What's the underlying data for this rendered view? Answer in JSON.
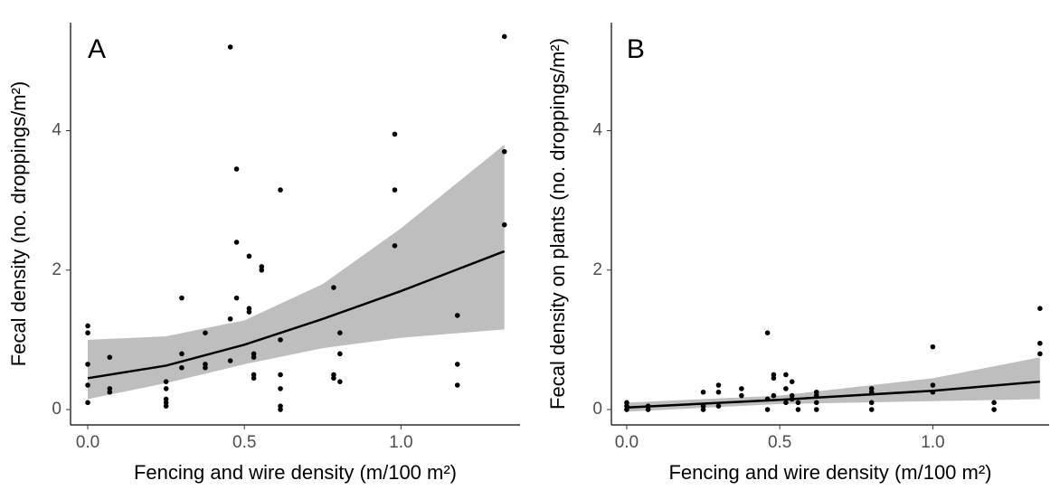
{
  "chart_data": [
    {
      "type": "scatter",
      "annotation": "A",
      "x_label": "Fencing and wire density (m/100 m²)",
      "y_label": "Fecal density (no. droppings/m²)",
      "xlim": [
        -0.055,
        1.38
      ],
      "ylim": [
        -0.22,
        5.55
      ],
      "xticks": [
        {
          "value": 0,
          "label": "0.0"
        },
        {
          "value": 0.5,
          "label": "0.5"
        },
        {
          "value": 1,
          "label": "1.0"
        }
      ],
      "yticks": [
        0,
        2,
        4
      ],
      "points": {
        "color": "#000000",
        "x": [
          0,
          0,
          0,
          0,
          0,
          0.07,
          0.07,
          0.07,
          0.25,
          0.25,
          0.25,
          0.25,
          0.25,
          0.3,
          0.3,
          0.3,
          0.375,
          0.375,
          0.375,
          0.455,
          0.455,
          0.455,
          0.475,
          0.475,
          0.475,
          0.515,
          0.515,
          0.515,
          0.53,
          0.53,
          0.53,
          0.53,
          0.555,
          0.555,
          0.615,
          0.615,
          0.615,
          0.615,
          0.615,
          0.615,
          0.785,
          0.785,
          0.785,
          0.805,
          0.805,
          0.805,
          0.98,
          0.98,
          0.98,
          1.18,
          1.18,
          1.18,
          1.33,
          1.33,
          1.33
        ],
        "y": [
          1.2,
          1.1,
          0.65,
          0.35,
          0.1,
          0.75,
          0.3,
          0.25,
          0.4,
          0.3,
          0.15,
          0.1,
          0.05,
          1.6,
          0.8,
          0.6,
          1.1,
          0.65,
          0.6,
          5.2,
          1.3,
          0.7,
          3.45,
          2.4,
          1.6,
          2.2,
          1.45,
          1.4,
          0.8,
          0.75,
          0.5,
          0.45,
          2.05,
          2.0,
          3.15,
          1.0,
          0.5,
          0.3,
          0.05,
          0.0,
          1.75,
          0.5,
          0.45,
          1.1,
          0.8,
          0.4,
          3.95,
          3.15,
          2.35,
          1.35,
          0.65,
          0.35,
          5.35,
          3.7,
          2.65
        ]
      },
      "fit": {
        "color": "#000000",
        "band_color": "#bebebe",
        "x": [
          0,
          0.25,
          0.5,
          0.75,
          1.0,
          1.33
        ],
        "y": [
          0.45,
          0.63,
          0.93,
          1.3,
          1.7,
          2.27
        ],
        "lower": [
          0.15,
          0.38,
          0.65,
          0.88,
          1.03,
          1.15
        ],
        "upper": [
          1.0,
          1.05,
          1.28,
          1.8,
          2.6,
          3.8
        ]
      }
    },
    {
      "type": "scatter",
      "annotation": "B",
      "x_label": "Fencing and wire density (m/100 m²)",
      "y_label": "Fecal density on plants (no. droppings/m²)",
      "xlim": [
        -0.05,
        1.38
      ],
      "ylim": [
        -0.22,
        5.55
      ],
      "xticks": [
        {
          "value": 0,
          "label": "0.0"
        },
        {
          "value": 0.5,
          "label": "0.5"
        },
        {
          "value": 1,
          "label": "1.0"
        }
      ],
      "yticks": [
        0,
        2,
        4
      ],
      "points": {
        "color": "#000000",
        "x": [
          0,
          0,
          0,
          0.07,
          0.07,
          0.25,
          0.25,
          0.25,
          0.3,
          0.3,
          0.3,
          0.375,
          0.375,
          0.46,
          0.46,
          0.46,
          0.48,
          0.48,
          0.48,
          0.52,
          0.52,
          0.52,
          0.54,
          0.54,
          0.54,
          0.56,
          0.56,
          0.62,
          0.62,
          0.62,
          0.62,
          0.8,
          0.8,
          0.8,
          0.8,
          1.0,
          1.0,
          1.0,
          1.2,
          1.2,
          1.35,
          1.35,
          1.35
        ],
        "y": [
          0.1,
          0.05,
          0.0,
          0.05,
          0.0,
          0.25,
          0.05,
          0.0,
          0.35,
          0.25,
          0.05,
          0.3,
          0.2,
          1.1,
          0.15,
          0.0,
          0.5,
          0.45,
          0.2,
          0.5,
          0.3,
          0.1,
          0.4,
          0.2,
          0.15,
          0.1,
          0.0,
          0.25,
          0.2,
          0.1,
          0.0,
          0.3,
          0.25,
          0.1,
          0.0,
          0.9,
          0.35,
          0.25,
          0.1,
          0.0,
          1.45,
          0.95,
          0.8
        ]
      },
      "fit": {
        "color": "#000000",
        "band_color": "#bebebe",
        "x": [
          0,
          0.5,
          1.0,
          1.35
        ],
        "y": [
          0.03,
          0.14,
          0.27,
          0.4
        ],
        "lower": [
          -0.03,
          0.08,
          0.12,
          0.15
        ],
        "upper": [
          0.1,
          0.2,
          0.45,
          0.75
        ]
      }
    }
  ]
}
